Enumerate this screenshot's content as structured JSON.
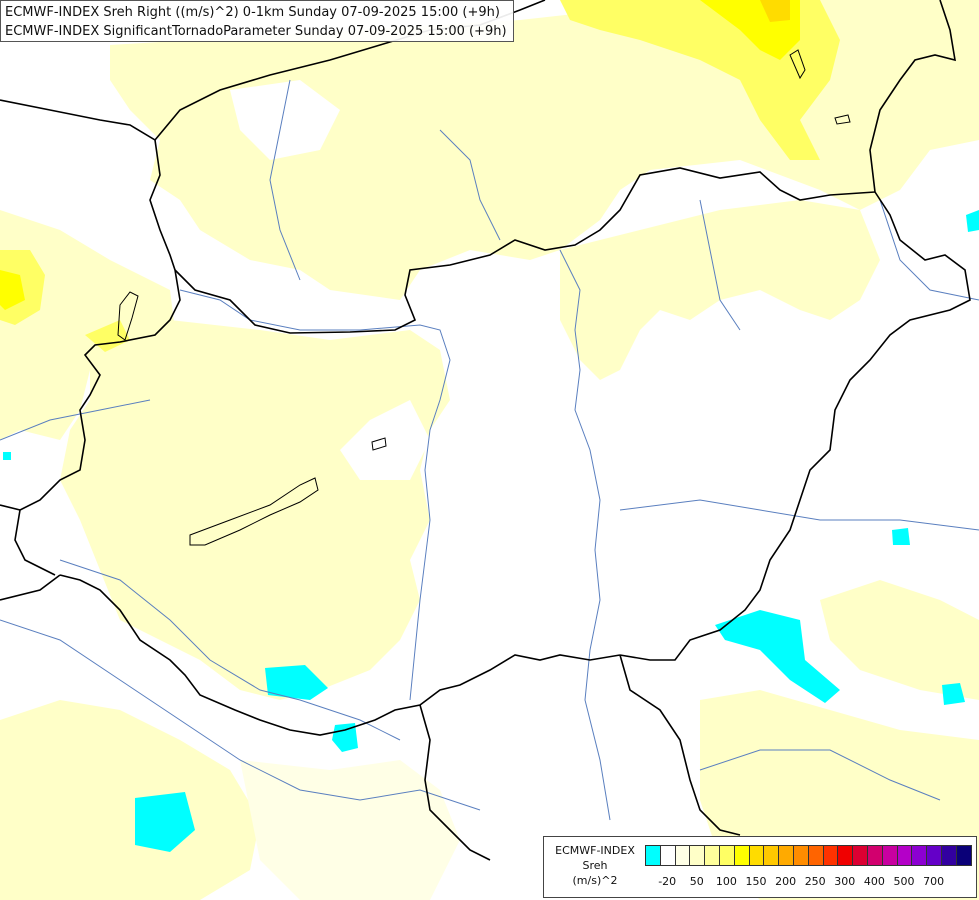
{
  "title": {
    "line1": "ECMWF-INDEX Sreh Right ((m/s)^2) 0-1km Sunday 07-09-2025 15:00 (+9h)",
    "line2": "ECMWF-INDEX SignificantTornadoParameter Sunday 07-09-2025 15:00 (+9h)"
  },
  "legend": {
    "title_line1": "ECMWF-INDEX",
    "title_line2": "Sreh",
    "title_line3": "(m/s)^2",
    "colors": [
      "#00ffff",
      "#ffffff",
      "#ffffe6",
      "#ffffc8",
      "#ffff9b",
      "#ffff64",
      "#ffff00",
      "#ffdc00",
      "#ffc800",
      "#ffaa00",
      "#ff8c00",
      "#ff6400",
      "#ff3200",
      "#f00000",
      "#dc0032",
      "#d2006e",
      "#c800a0",
      "#b400c8",
      "#8c00d2",
      "#6400c8",
      "#3200a0",
      "#0a0078"
    ],
    "tick_labels": [
      {
        "text": "-20",
        "at": 1
      },
      {
        "text": "50",
        "at": 3
      },
      {
        "text": "100",
        "at": 5
      },
      {
        "text": "150",
        "at": 7
      },
      {
        "text": "200",
        "at": 9
      },
      {
        "text": "250",
        "at": 11
      },
      {
        "text": "300",
        "at": 13
      },
      {
        "text": "400",
        "at": 15
      },
      {
        "text": "500",
        "at": 17
      },
      {
        "text": "700",
        "at": 19
      }
    ]
  },
  "map_colors": {
    "background": "#ffffff",
    "light_yellow": "#ffffc8",
    "pale_yellow": "#ffffe6",
    "yellow": "#ffff64",
    "bright_yellow": "#ffff00",
    "gold": "#ffdc00",
    "cyan": "#00ffff",
    "border": "#000000",
    "river": "#5a7fbf",
    "lake_outline": "#000000"
  }
}
